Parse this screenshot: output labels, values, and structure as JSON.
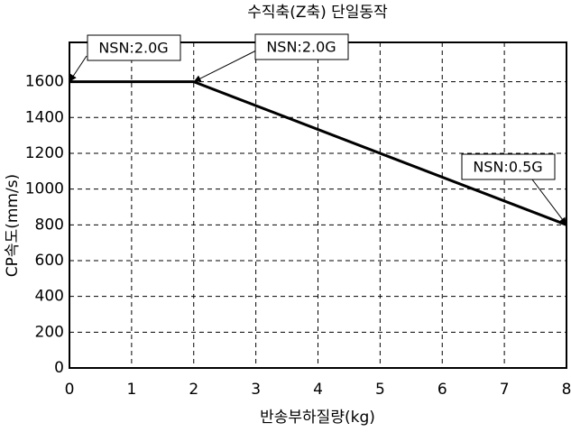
{
  "chart_data": {
    "type": "line",
    "title": "수직축(Z축) 단일동작",
    "x_label": "반송부하질량(kg)",
    "y_label": "CP속도(mm/s)",
    "x": [
      0,
      2,
      8
    ],
    "series": [
      {
        "name": "CP속도",
        "color": "#000000",
        "values": [
          1600,
          1600,
          800
        ]
      }
    ],
    "xlim": [
      0,
      8
    ],
    "xticks": [
      0,
      1,
      2,
      3,
      4,
      5,
      6,
      7,
      8
    ],
    "ylim": [
      0,
      1820
    ],
    "yticks": [
      0,
      200,
      400,
      600,
      800,
      1000,
      1200,
      1400,
      1600
    ],
    "grid": true,
    "annotations": [
      {
        "text": "NSN:2.0G",
        "x": 0,
        "y": 1600
      },
      {
        "text": "NSN:2.0G",
        "x": 2,
        "y": 1600
      },
      {
        "text": "NSN:0.5G",
        "x": 8,
        "y": 800
      }
    ]
  }
}
